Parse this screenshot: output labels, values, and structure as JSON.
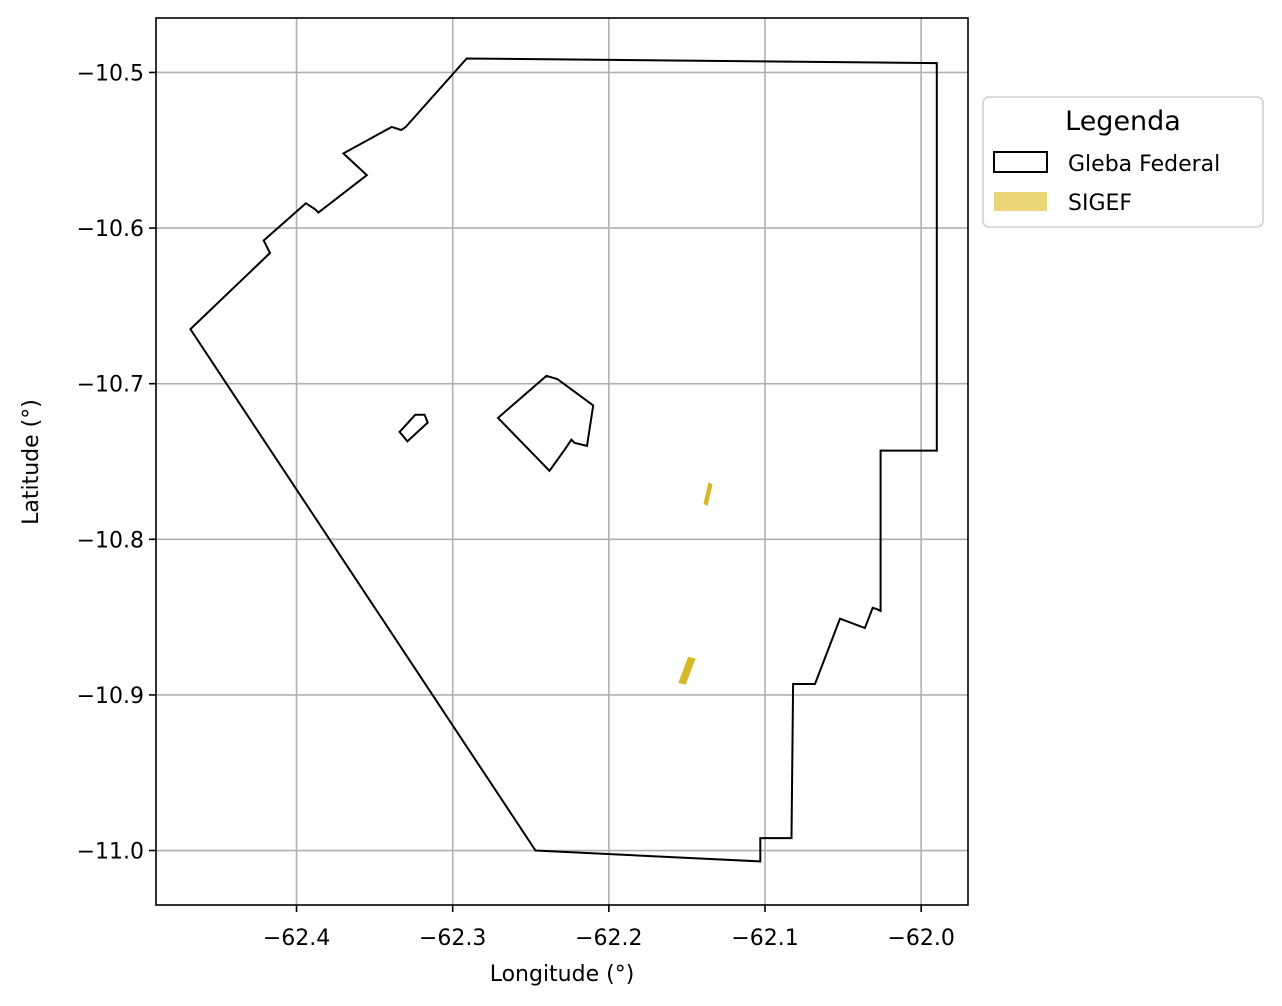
{
  "chart_data": {
    "type": "map",
    "xlabel": "Longitude (°)",
    "ylabel": "Latitude (°)",
    "xlim": [
      -62.49,
      -61.97
    ],
    "ylim": [
      -11.035,
      -10.465
    ],
    "grid": true,
    "x_ticks": [
      {
        "value": -62.4,
        "label": "−62.4"
      },
      {
        "value": -62.3,
        "label": "−62.3"
      },
      {
        "value": -62.2,
        "label": "−62.2"
      },
      {
        "value": -62.1,
        "label": "−62.1"
      },
      {
        "value": -62.0,
        "label": "−62.0"
      }
    ],
    "y_ticks": [
      {
        "value": -10.5,
        "label": "−10.5"
      },
      {
        "value": -10.6,
        "label": "−10.6"
      },
      {
        "value": -10.7,
        "label": "−10.7"
      },
      {
        "value": -10.8,
        "label": "−10.8"
      },
      {
        "value": -10.9,
        "label": "−10.9"
      },
      {
        "value": -11.0,
        "label": "−11.0"
      }
    ],
    "legend": {
      "title": "Legenda",
      "placement": "outside-right-top",
      "entries": [
        {
          "label": "Gleba Federal",
          "style": "outline",
          "edge_color": "#000000",
          "fill_color": "#ffffff"
        },
        {
          "label": "SIGEF",
          "style": "filled",
          "fill_color": "#ebd67a"
        }
      ]
    },
    "series": [
      {
        "name": "Gleba Federal",
        "kind": "polygon",
        "edge_color": "#000000",
        "polygons": [
          [
            [
              -62.291,
              -10.491
            ],
            [
              -61.99,
              -10.494
            ],
            [
              -61.99,
              -10.743
            ],
            [
              -62.026,
              -10.743
            ],
            [
              -62.026,
              -10.846
            ],
            [
              -62.028,
              -10.845
            ],
            [
              -62.031,
              -10.844
            ],
            [
              -62.036,
              -10.857
            ],
            [
              -62.052,
              -10.851
            ],
            [
              -62.068,
              -10.893
            ],
            [
              -62.082,
              -10.893
            ],
            [
              -62.083,
              -10.992
            ],
            [
              -62.103,
              -10.992
            ],
            [
              -62.103,
              -11.007
            ],
            [
              -62.247,
              -11.0
            ],
            [
              -62.468,
              -10.665
            ],
            [
              -62.417,
              -10.616
            ],
            [
              -62.421,
              -10.608
            ],
            [
              -62.394,
              -10.584
            ],
            [
              -62.388,
              -10.588
            ],
            [
              -62.386,
              -10.59
            ],
            [
              -62.355,
              -10.566
            ],
            [
              -62.37,
              -10.552
            ],
            [
              -62.339,
              -10.535
            ],
            [
              -62.333,
              -10.537
            ],
            [
              -62.33,
              -10.535
            ],
            [
              -62.291,
              -10.491
            ]
          ],
          [
            [
              -62.233,
              -10.697
            ],
            [
              -62.21,
              -10.714
            ],
            [
              -62.214,
              -10.74
            ],
            [
              -62.222,
              -10.738
            ],
            [
              -62.224,
              -10.736
            ],
            [
              -62.228,
              -10.742
            ],
            [
              -62.238,
              -10.756
            ],
            [
              -62.271,
              -10.722
            ],
            [
              -62.24,
              -10.695
            ],
            [
              -62.233,
              -10.697
            ]
          ],
          [
            [
              -62.324,
              -10.72
            ],
            [
              -62.334,
              -10.731
            ],
            [
              -62.329,
              -10.737
            ],
            [
              -62.316,
              -10.725
            ],
            [
              -62.318,
              -10.72
            ],
            [
              -62.324,
              -10.72
            ]
          ]
        ]
      },
      {
        "name": "SIGEF",
        "kind": "polygon",
        "fill_color": "#d6b928",
        "polygons": [
          [
            [
              -62.136,
              -10.764
            ],
            [
              -62.134,
              -10.765
            ],
            [
              -62.137,
              -10.778
            ],
            [
              -62.139,
              -10.777
            ]
          ],
          [
            [
              -62.149,
              -10.876
            ],
            [
              -62.145,
              -10.877
            ],
            [
              -62.151,
              -10.893
            ],
            [
              -62.155,
              -10.892
            ]
          ]
        ]
      }
    ]
  }
}
